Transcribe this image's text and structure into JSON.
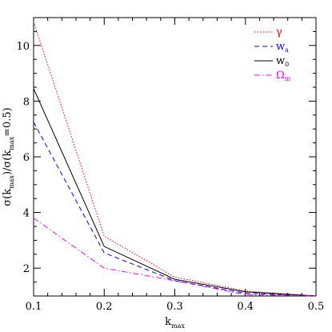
{
  "chart_data": {
    "type": "line",
    "x": [
      0.1,
      0.2,
      0.3,
      0.4,
      0.5
    ],
    "xlim": [
      0.1,
      0.5
    ],
    "ylim": [
      1,
      11
    ],
    "xticks": [
      "0.1",
      "0.2",
      "0.3",
      "0.4",
      "0.5"
    ],
    "yticks": [
      "2",
      "4",
      "6",
      "8",
      "10"
    ],
    "xlabel": {
      "base": "k",
      "sub": "max"
    },
    "ylabel": {
      "text1": "σ(k",
      "sub1": "max",
      "text2": ")/σ(k",
      "sub2": "max",
      "text3": "=0.5)"
    },
    "legend_position": "top-right",
    "grid": false,
    "series": [
      {
        "name": "γ",
        "sub": "",
        "color": "#ff0000",
        "dash": "dotted",
        "values": [
          10.85,
          3.15,
          1.68,
          1.18,
          1.0
        ]
      },
      {
        "name": "w",
        "sub": "a",
        "color": "#0000ff",
        "dash": "dashed",
        "values": [
          7.25,
          2.55,
          1.55,
          1.1,
          1.0
        ]
      },
      {
        "name": "w",
        "sub": "0",
        "color": "#000000",
        "dash": "solid",
        "values": [
          8.45,
          2.78,
          1.6,
          1.15,
          1.0
        ]
      },
      {
        "name": "Ω",
        "sub": "m",
        "color": "#ff00ff",
        "dash": "dashdot",
        "values": [
          3.8,
          2.0,
          1.55,
          1.05,
          1.0
        ]
      }
    ]
  }
}
